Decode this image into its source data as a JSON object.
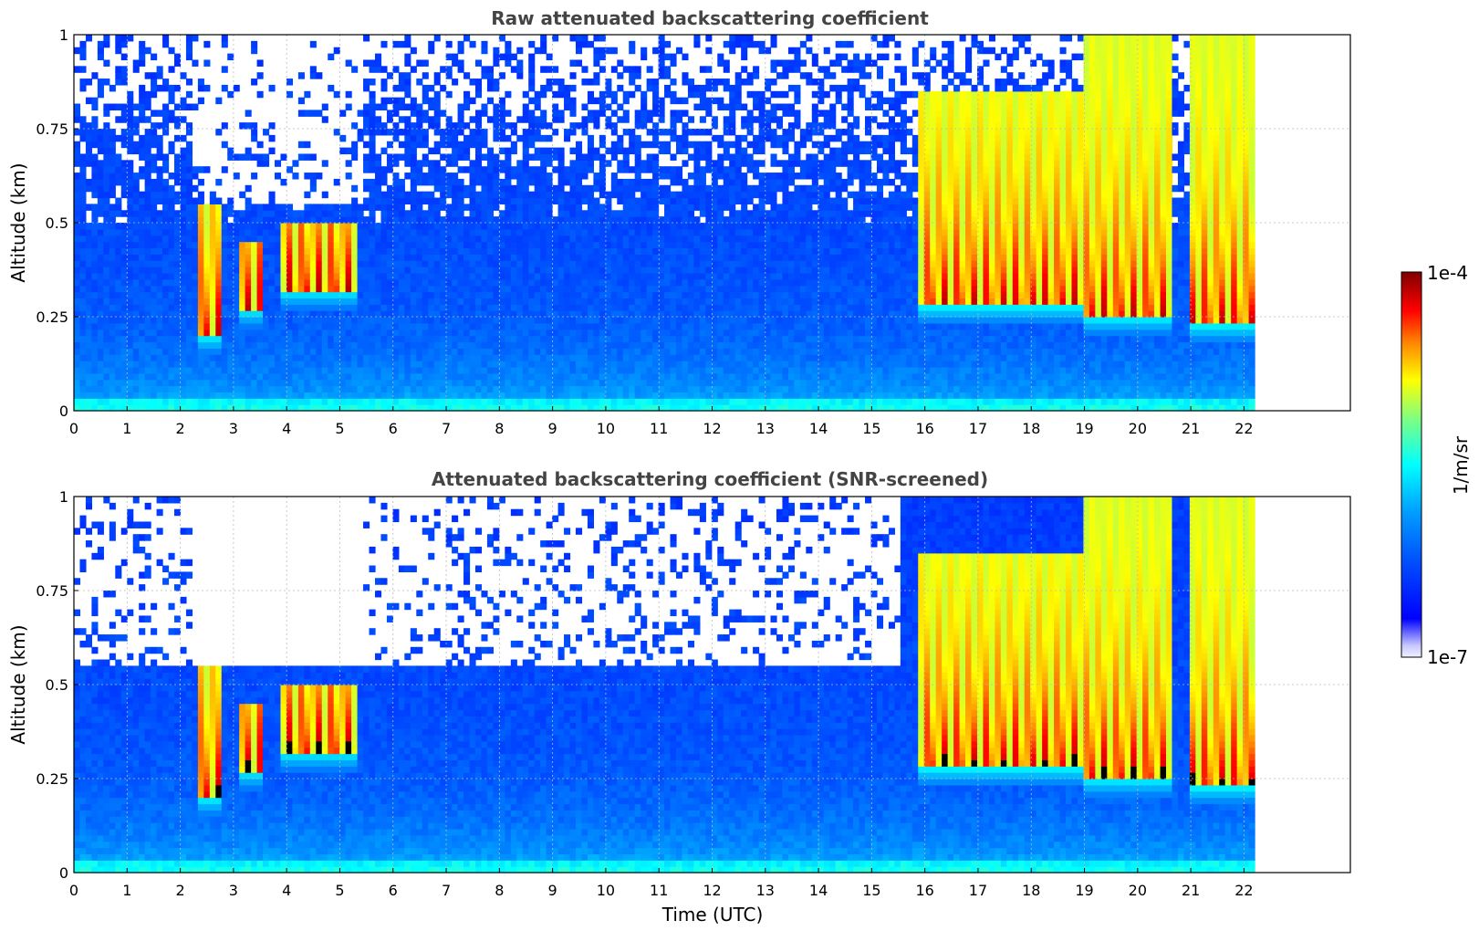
{
  "colorbar": {
    "label": "1/m/sr",
    "max_label": "1e-4",
    "min_label": "1e-7",
    "colormap": "jet"
  },
  "chart_data": [
    {
      "type": "heatmap",
      "title": "Raw attenuated backscattering coefficient",
      "xlabel": "",
      "ylabel": "Altitude (km)",
      "xlim": [
        0,
        24
      ],
      "ylim": [
        0,
        1
      ],
      "x_ticks": [
        "0",
        "1",
        "2",
        "3",
        "4",
        "5",
        "6",
        "7",
        "8",
        "9",
        "10",
        "11",
        "12",
        "13",
        "14",
        "15",
        "16",
        "17",
        "18",
        "19",
        "20",
        "21",
        "22"
      ],
      "y_ticks": [
        "0",
        "0.25",
        "0.5",
        "0.75",
        "1"
      ],
      "data_extent_x": [
        0,
        22.2
      ],
      "grid": true,
      "log_scale_colors": true,
      "cloud_layers": [
        {
          "x": [
            2.3,
            2.8
          ],
          "base": 0.2,
          "top": 0.55
        },
        {
          "x": [
            3.1,
            3.5
          ],
          "base": 0.27,
          "top": 0.45
        },
        {
          "x": [
            3.9,
            5.3
          ],
          "base": 0.32,
          "top": 0.5
        },
        {
          "x": [
            15.9,
            19.0
          ],
          "base": 0.28,
          "top": 0.85
        },
        {
          "x": [
            19.0,
            20.7
          ],
          "base": 0.25,
          "top": 1.0
        },
        {
          "x": [
            21.0,
            22.2
          ],
          "base": 0.23,
          "top": 1.0
        }
      ]
    },
    {
      "type": "heatmap",
      "title": "Attenuated backscattering coefficient (SNR-screened)",
      "xlabel": "Time (UTC)",
      "ylabel": "Altitude (km)",
      "xlim": [
        0,
        24
      ],
      "ylim": [
        0,
        1
      ],
      "x_ticks": [
        "0",
        "1",
        "2",
        "3",
        "4",
        "5",
        "6",
        "7",
        "8",
        "9",
        "10",
        "11",
        "12",
        "13",
        "14",
        "15",
        "16",
        "17",
        "18",
        "19",
        "20",
        "21",
        "22"
      ],
      "y_ticks": [
        "0",
        "0.25",
        "0.5",
        "0.75",
        "1"
      ],
      "data_extent_x": [
        0,
        22.2
      ],
      "grid": true,
      "log_scale_colors": true,
      "cloud_layers": [
        {
          "x": [
            2.3,
            2.8
          ],
          "base": 0.2,
          "top": 0.55
        },
        {
          "x": [
            3.1,
            3.5
          ],
          "base": 0.27,
          "top": 0.45
        },
        {
          "x": [
            3.9,
            5.3
          ],
          "base": 0.32,
          "top": 0.5
        },
        {
          "x": [
            15.9,
            19.0
          ],
          "base": 0.28,
          "top": 0.85
        },
        {
          "x": [
            19.0,
            20.7
          ],
          "base": 0.25,
          "top": 1.0
        },
        {
          "x": [
            21.0,
            22.2
          ],
          "base": 0.23,
          "top": 1.0
        }
      ]
    }
  ]
}
